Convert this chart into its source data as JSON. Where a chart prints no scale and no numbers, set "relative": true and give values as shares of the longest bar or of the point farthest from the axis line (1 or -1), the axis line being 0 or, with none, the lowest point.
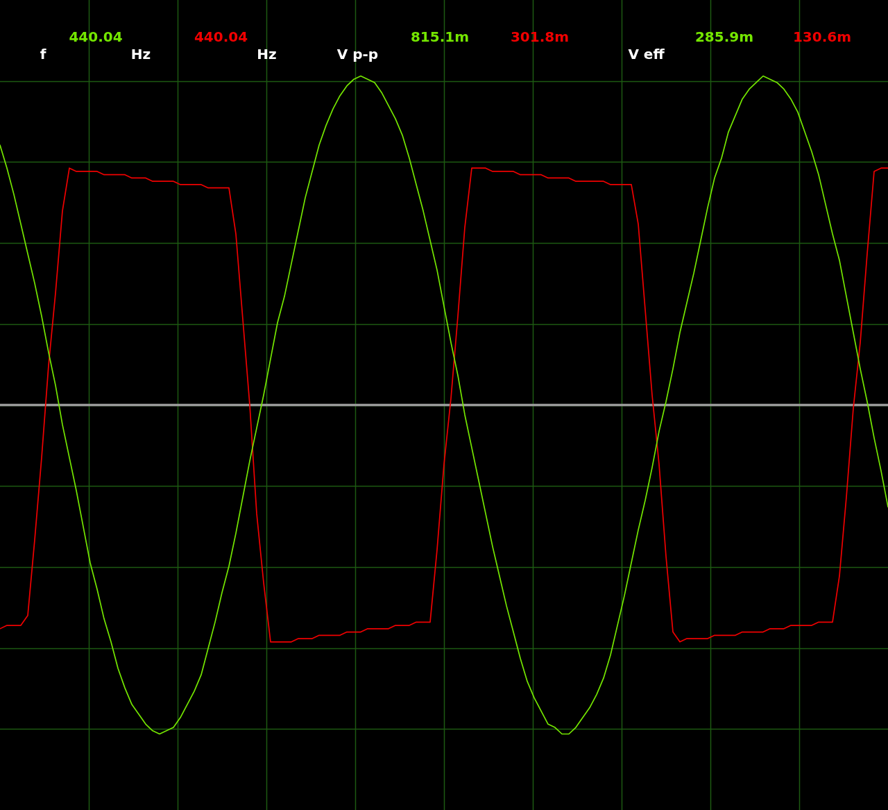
{
  "chart_data": {
    "type": "line",
    "relative": true,
    "grid": true,
    "categories": [
      null,
      null,
      null,
      null,
      null,
      null,
      null,
      null,
      null,
      null,
      null,
      null,
      null,
      null,
      null,
      null,
      null,
      null,
      null,
      null,
      null,
      null,
      null,
      null,
      null,
      null,
      null,
      null,
      null,
      null,
      null,
      null,
      null,
      null,
      null,
      null,
      null,
      null,
      null,
      null,
      null,
      null,
      null,
      null,
      null,
      null,
      null,
      null,
      null,
      null,
      null,
      null,
      null,
      null,
      null,
      null,
      null,
      null,
      null,
      null,
      null,
      null,
      null,
      null,
      null,
      null,
      null,
      null,
      null,
      null,
      null,
      null,
      null,
      null,
      null,
      null,
      null,
      null,
      null,
      null,
      null,
      null,
      null,
      null,
      null,
      null,
      null,
      null,
      null,
      null,
      null,
      null,
      null,
      null,
      null,
      null,
      null,
      null,
      null,
      null,
      null,
      null,
      null,
      null,
      null,
      null,
      null,
      null,
      null,
      null,
      null,
      null,
      null,
      null,
      null,
      null,
      null,
      null,
      null,
      null,
      null,
      null,
      null,
      null,
      null,
      null,
      null,
      null,
      null
    ],
    "series": [
      {
        "color": "#74e600",
        "values": [
          0.79,
          0.72,
          0.64,
          0.55,
          0.46,
          0.37,
          0.27,
          0.16,
          0.06,
          -0.06,
          -0.16,
          -0.26,
          -0.37,
          -0.48,
          -0.56,
          -0.65,
          -0.72,
          -0.8,
          -0.86,
          -0.91,
          -0.94,
          -0.97,
          -0.99,
          -1.0,
          -0.99,
          -0.98,
          -0.95,
          -0.91,
          -0.87,
          -0.82,
          -0.74,
          -0.66,
          -0.57,
          -0.49,
          -0.39,
          -0.28,
          -0.17,
          -0.07,
          0.03,
          0.14,
          0.25,
          0.33,
          0.43,
          0.53,
          0.63,
          0.71,
          0.79,
          0.85,
          0.9,
          0.94,
          0.97,
          0.99,
          1.0,
          0.99,
          0.98,
          0.95,
          0.91,
          0.87,
          0.82,
          0.75,
          0.67,
          0.59,
          0.5,
          0.41,
          0.3,
          0.19,
          0.09,
          -0.03,
          -0.13,
          -0.23,
          -0.33,
          -0.43,
          -0.52,
          -0.61,
          -0.69,
          -0.77,
          -0.84,
          -0.89,
          -0.93,
          -0.97,
          -0.98,
          -1.0,
          -1.0,
          -0.98,
          -0.95,
          -0.92,
          -0.88,
          -0.83,
          -0.76,
          -0.67,
          -0.58,
          -0.48,
          -0.38,
          -0.29,
          -0.19,
          -0.08,
          0.01,
          0.11,
          0.22,
          0.31,
          0.4,
          0.5,
          0.6,
          0.69,
          0.75,
          0.83,
          0.88,
          0.93,
          0.96,
          0.98,
          1.0,
          0.99,
          0.98,
          0.96,
          0.93,
          0.89,
          0.83,
          0.77,
          0.7,
          0.61,
          0.52,
          0.44,
          0.33,
          0.22,
          0.11,
          0.01,
          -0.1,
          -0.2,
          -0.31
        ]
      },
      {
        "color": "#f00000",
        "values": [
          -0.68,
          -0.67,
          -0.67,
          -0.67,
          -0.64,
          -0.41,
          -0.16,
          0.12,
          0.34,
          0.59,
          0.72,
          0.71,
          0.71,
          0.71,
          0.71,
          0.7,
          0.7,
          0.7,
          0.7,
          0.69,
          0.69,
          0.69,
          0.68,
          0.68,
          0.68,
          0.68,
          0.67,
          0.67,
          0.67,
          0.67,
          0.66,
          0.66,
          0.66,
          0.66,
          0.52,
          0.26,
          0.0,
          -0.33,
          -0.54,
          -0.72,
          -0.72,
          -0.72,
          -0.72,
          -0.71,
          -0.71,
          -0.71,
          -0.7,
          -0.7,
          -0.7,
          -0.7,
          -0.69,
          -0.69,
          -0.69,
          -0.68,
          -0.68,
          -0.68,
          -0.68,
          -0.67,
          -0.67,
          -0.67,
          -0.66,
          -0.66,
          -0.66,
          -0.44,
          -0.18,
          0.02,
          0.27,
          0.54,
          0.72,
          0.72,
          0.72,
          0.71,
          0.71,
          0.71,
          0.71,
          0.7,
          0.7,
          0.7,
          0.7,
          0.69,
          0.69,
          0.69,
          0.69,
          0.68,
          0.68,
          0.68,
          0.68,
          0.68,
          0.67,
          0.67,
          0.67,
          0.67,
          0.55,
          0.29,
          0.03,
          -0.18,
          -0.46,
          -0.69,
          -0.72,
          -0.71,
          -0.71,
          -0.71,
          -0.71,
          -0.7,
          -0.7,
          -0.7,
          -0.7,
          -0.69,
          -0.69,
          -0.69,
          -0.69,
          -0.68,
          -0.68,
          -0.68,
          -0.67,
          -0.67,
          -0.67,
          -0.67,
          -0.66,
          -0.66,
          -0.66,
          -0.52,
          -0.28,
          -0.01,
          0.19,
          0.46,
          0.71,
          0.72,
          0.72
        ]
      }
    ],
    "annotations": [
      "f",
      "440.04",
      "Hz",
      "440.04",
      "Hz",
      "V p-p",
      "815.1m",
      "301.8m",
      "V eff",
      "285.9m",
      "130.6m"
    ]
  }
}
